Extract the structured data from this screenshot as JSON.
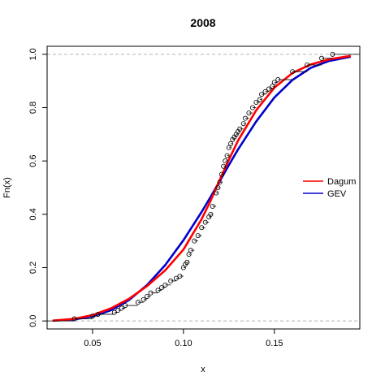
{
  "chart_data": {
    "type": "line",
    "title": "2008",
    "xlabel": "x",
    "ylabel": "Fn(x)",
    "xlim": [
      0.025,
      0.197
    ],
    "ylim": [
      -0.03,
      1.03
    ],
    "x_ticks": [
      "0.05",
      "0.10",
      "0.15"
    ],
    "x_tick_values": [
      0.05,
      0.1,
      0.15
    ],
    "y_ticks": [
      "0.0",
      "0.2",
      "0.4",
      "0.6",
      "0.8",
      "1.0"
    ],
    "y_tick_values": [
      0.0,
      0.2,
      0.4,
      0.6,
      0.8,
      1.0
    ],
    "reference_lines": [
      0.0,
      1.0
    ],
    "legend": {
      "placement": "right",
      "entries": [
        {
          "label": "Dagum",
          "color": "#ff0000"
        },
        {
          "label": "GEV",
          "color": "#0000cc"
        }
      ]
    },
    "series": [
      {
        "name": "Dagum",
        "color": "#ff0000",
        "x": [
          0.028,
          0.04,
          0.05,
          0.06,
          0.07,
          0.08,
          0.09,
          0.1,
          0.11,
          0.115,
          0.12,
          0.125,
          0.13,
          0.14,
          0.15,
          0.16,
          0.17,
          0.18,
          0.192
        ],
        "y": [
          0.001,
          0.008,
          0.022,
          0.047,
          0.083,
          0.131,
          0.19,
          0.268,
          0.382,
          0.452,
          0.53,
          0.605,
          0.676,
          0.79,
          0.875,
          0.93,
          0.962,
          0.981,
          0.994
        ]
      },
      {
        "name": "GEV",
        "color": "#0000cc",
        "x": [
          0.028,
          0.04,
          0.05,
          0.06,
          0.07,
          0.08,
          0.09,
          0.1,
          0.11,
          0.115,
          0.12,
          0.125,
          0.13,
          0.14,
          0.15,
          0.16,
          0.17,
          0.18,
          0.192
        ],
        "y": [
          0.001,
          0.006,
          0.017,
          0.04,
          0.078,
          0.135,
          0.21,
          0.303,
          0.409,
          0.466,
          0.525,
          0.585,
          0.643,
          0.748,
          0.838,
          0.904,
          0.949,
          0.975,
          0.991
        ]
      }
    ],
    "ecdf_points": {
      "x": [
        0.04,
        0.05,
        0.053,
        0.062,
        0.064,
        0.066,
        0.068,
        0.075,
        0.078,
        0.08,
        0.082,
        0.086,
        0.088,
        0.09,
        0.093,
        0.096,
        0.098,
        0.1,
        0.101,
        0.102,
        0.103,
        0.104,
        0.106,
        0.108,
        0.11,
        0.112,
        0.114,
        0.115,
        0.116,
        0.118,
        0.119,
        0.12,
        0.121,
        0.122,
        0.123,
        0.124,
        0.125,
        0.126,
        0.127,
        0.128,
        0.129,
        0.13,
        0.131,
        0.133,
        0.134,
        0.136,
        0.138,
        0.14,
        0.142,
        0.143,
        0.145,
        0.147,
        0.149,
        0.15,
        0.152,
        0.16,
        0.168,
        0.176,
        0.182
      ],
      "y": [
        0.008,
        0.018,
        0.025,
        0.032,
        0.04,
        0.048,
        0.058,
        0.07,
        0.08,
        0.092,
        0.105,
        0.115,
        0.125,
        0.135,
        0.15,
        0.16,
        0.168,
        0.2,
        0.212,
        0.22,
        0.25,
        0.265,
        0.3,
        0.32,
        0.35,
        0.37,
        0.39,
        0.4,
        0.43,
        0.48,
        0.5,
        0.52,
        0.55,
        0.58,
        0.6,
        0.62,
        0.65,
        0.665,
        0.68,
        0.69,
        0.7,
        0.71,
        0.72,
        0.74,
        0.76,
        0.78,
        0.8,
        0.82,
        0.83,
        0.85,
        0.86,
        0.87,
        0.88,
        0.895,
        0.905,
        0.935,
        0.96,
        0.985,
        1.0
      ]
    }
  }
}
